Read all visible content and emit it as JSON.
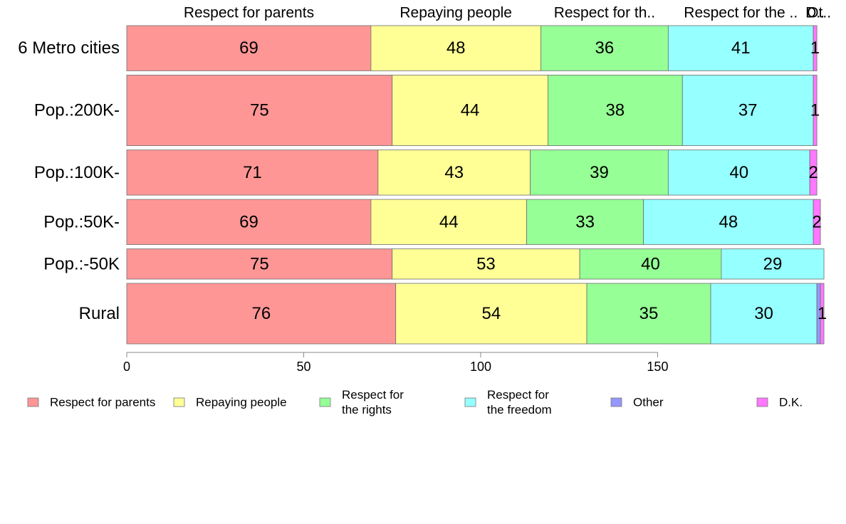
{
  "chart_data": {
    "type": "bar",
    "orientation": "horizontal",
    "stacked": true,
    "categories": [
      "6 Metro cities",
      "Pop.:200K-",
      "Pop.:100K-",
      "Pop.:50K-",
      "Pop.:-50K",
      "Rural"
    ],
    "column_weights": [
      11.2,
      17.5,
      11.2,
      11.2,
      7.5,
      15.0
    ],
    "series": [
      {
        "name": "Respect for parents",
        "top_label": "Respect for parents",
        "legend": [
          "Respect for parents"
        ],
        "color": "#ff9696",
        "values": [
          69,
          75,
          71,
          69,
          75,
          76
        ]
      },
      {
        "name": "Repaying people",
        "top_label": "Repaying people",
        "legend": [
          "Repaying people"
        ],
        "color": "#ffff96",
        "values": [
          48,
          44,
          43,
          44,
          53,
          54
        ]
      },
      {
        "name": "Respect for the rights",
        "top_label": "Respect for th..",
        "legend": [
          "Respect for",
          "the rights"
        ],
        "color": "#96ff96",
        "values": [
          36,
          38,
          39,
          33,
          40,
          35
        ]
      },
      {
        "name": "Respect for the freedom",
        "top_label": "Respect for the ..",
        "legend": [
          "Respect for",
          "the freedom"
        ],
        "color": "#96ffff",
        "values": [
          41,
          37,
          40,
          48,
          29,
          30
        ]
      },
      {
        "name": "Other",
        "top_label": "Ot..",
        "legend": [
          "Other"
        ],
        "color": "#9696ff",
        "values": [
          0,
          0,
          0,
          0,
          0,
          1
        ]
      },
      {
        "name": "D.K.",
        "top_label": "D..",
        "legend": [
          "D.K."
        ],
        "color": "#ff78ff",
        "values": [
          1,
          1,
          2,
          2,
          0,
          1
        ]
      }
    ],
    "segment_labels": [
      [
        "69",
        "48",
        "36",
        "41",
        "",
        "1"
      ],
      [
        "75",
        "44",
        "38",
        "37",
        "",
        "1"
      ],
      [
        "71",
        "43",
        "39",
        "40",
        "",
        "2"
      ],
      [
        "69",
        "44",
        "33",
        "48",
        "",
        "2"
      ],
      [
        "75",
        "53",
        "40",
        "29",
        "",
        ""
      ],
      [
        "76",
        "54",
        "35",
        "30",
        "",
        "1"
      ]
    ],
    "xticks": [
      0,
      50,
      100,
      150
    ],
    "xlim": [
      0,
      198
    ],
    "title": "",
    "xlabel": "",
    "ylabel": "",
    "legend_position": "bottom",
    "grid": false
  }
}
